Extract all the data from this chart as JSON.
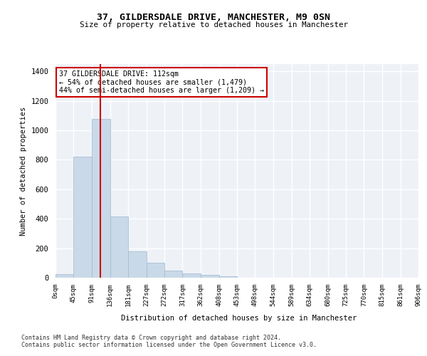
{
  "title1": "37, GILDERSDALE DRIVE, MANCHESTER, M9 0SN",
  "title2": "Size of property relative to detached houses in Manchester",
  "xlabel": "Distribution of detached houses by size in Manchester",
  "ylabel": "Number of detached properties",
  "annotation_line1": "37 GILDERSDALE DRIVE: 112sqm",
  "annotation_line2": "← 54% of detached houses are smaller (1,479)",
  "annotation_line3": "44% of semi-detached houses are larger (1,209) →",
  "footer1": "Contains HM Land Registry data © Crown copyright and database right 2024.",
  "footer2": "Contains public sector information licensed under the Open Government Licence v3.0.",
  "bar_color": "#c9d9e8",
  "bar_edgecolor": "#a0b8cf",
  "redline_x": 112,
  "bin_edges": [
    0,
    45,
    91,
    136,
    181,
    227,
    272,
    317,
    362,
    408,
    453,
    498,
    544,
    589,
    634,
    680,
    725,
    770,
    815,
    861,
    906
  ],
  "bar_heights": [
    25,
    820,
    1080,
    415,
    180,
    100,
    50,
    30,
    20,
    10,
    0,
    0,
    0,
    0,
    0,
    0,
    0,
    0,
    0,
    0
  ],
  "ylim": [
    0,
    1450
  ],
  "yticks": [
    0,
    200,
    400,
    600,
    800,
    1000,
    1200,
    1400
  ],
  "background_color": "#eef2f7",
  "plot_background": "#ffffff",
  "grid_color": "#ffffff",
  "annotation_box_color": "#ffffff",
  "annotation_box_edgecolor": "#cc0000",
  "redline_color": "#cc0000"
}
